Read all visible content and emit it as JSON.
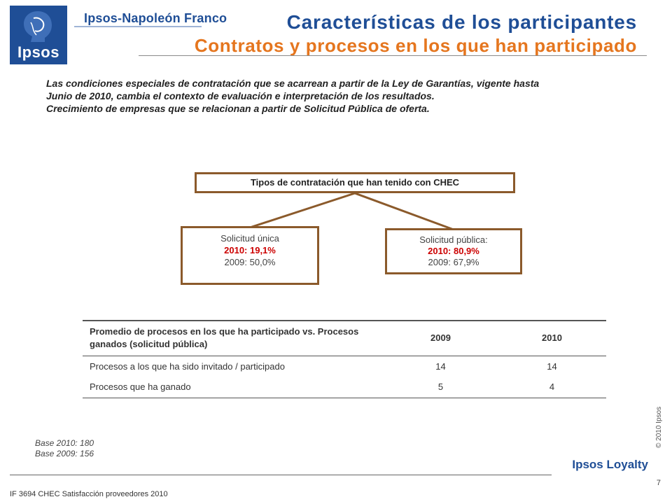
{
  "header": {
    "logo_text": "Ipsos",
    "brand": "Ipsos-Napoleón Franco",
    "title": "Características de los participantes",
    "subtitle": "Contratos y procesos en los que han participado"
  },
  "intro": {
    "line1": "Las condiciones especiales de contratación que se acarrean a partir de la Ley de Garantías, vigente hasta",
    "line2": "Junio de 2010, cambia el contexto de evaluación e interpretación de los resultados.",
    "line3": "Crecimiento de empresas que se relacionan a partir de Solicitud Pública de oferta."
  },
  "diagram": {
    "top_label": "Tipos de contratación que han tenido con CHEC",
    "left": {
      "title": "Solicitud única",
      "line_2010": "2010:  19,1%",
      "line_2009": "2009: 50,0%"
    },
    "right": {
      "title": "Solicitud pública:",
      "line_2010": "2010:  80,9%",
      "line_2009": "2009: 67,9%"
    },
    "colors": {
      "border": "#8b5a2b",
      "highlight": "#cc0000"
    }
  },
  "table": {
    "header": "Promedio de procesos en los que  ha participado vs. Procesos ganados (solicitud pública)",
    "col_2009": "2009",
    "col_2010": "2010",
    "rows": [
      {
        "label": "Procesos a los que ha sido invitado / participado",
        "v2009": "14",
        "v2010": "14"
      },
      {
        "label": "Procesos que ha ganado",
        "v2009": "5",
        "v2010": "4"
      }
    ]
  },
  "base": {
    "line1": "Base 2010: 180",
    "line2": "Base 2009: 156"
  },
  "side": {
    "copyright": "© 2010 Ipsos"
  },
  "footer": {
    "division": "Ipsos Loyalty",
    "page": "7",
    "report": "IF 3694   CHEC  Satisfacción proveedores 2010"
  }
}
